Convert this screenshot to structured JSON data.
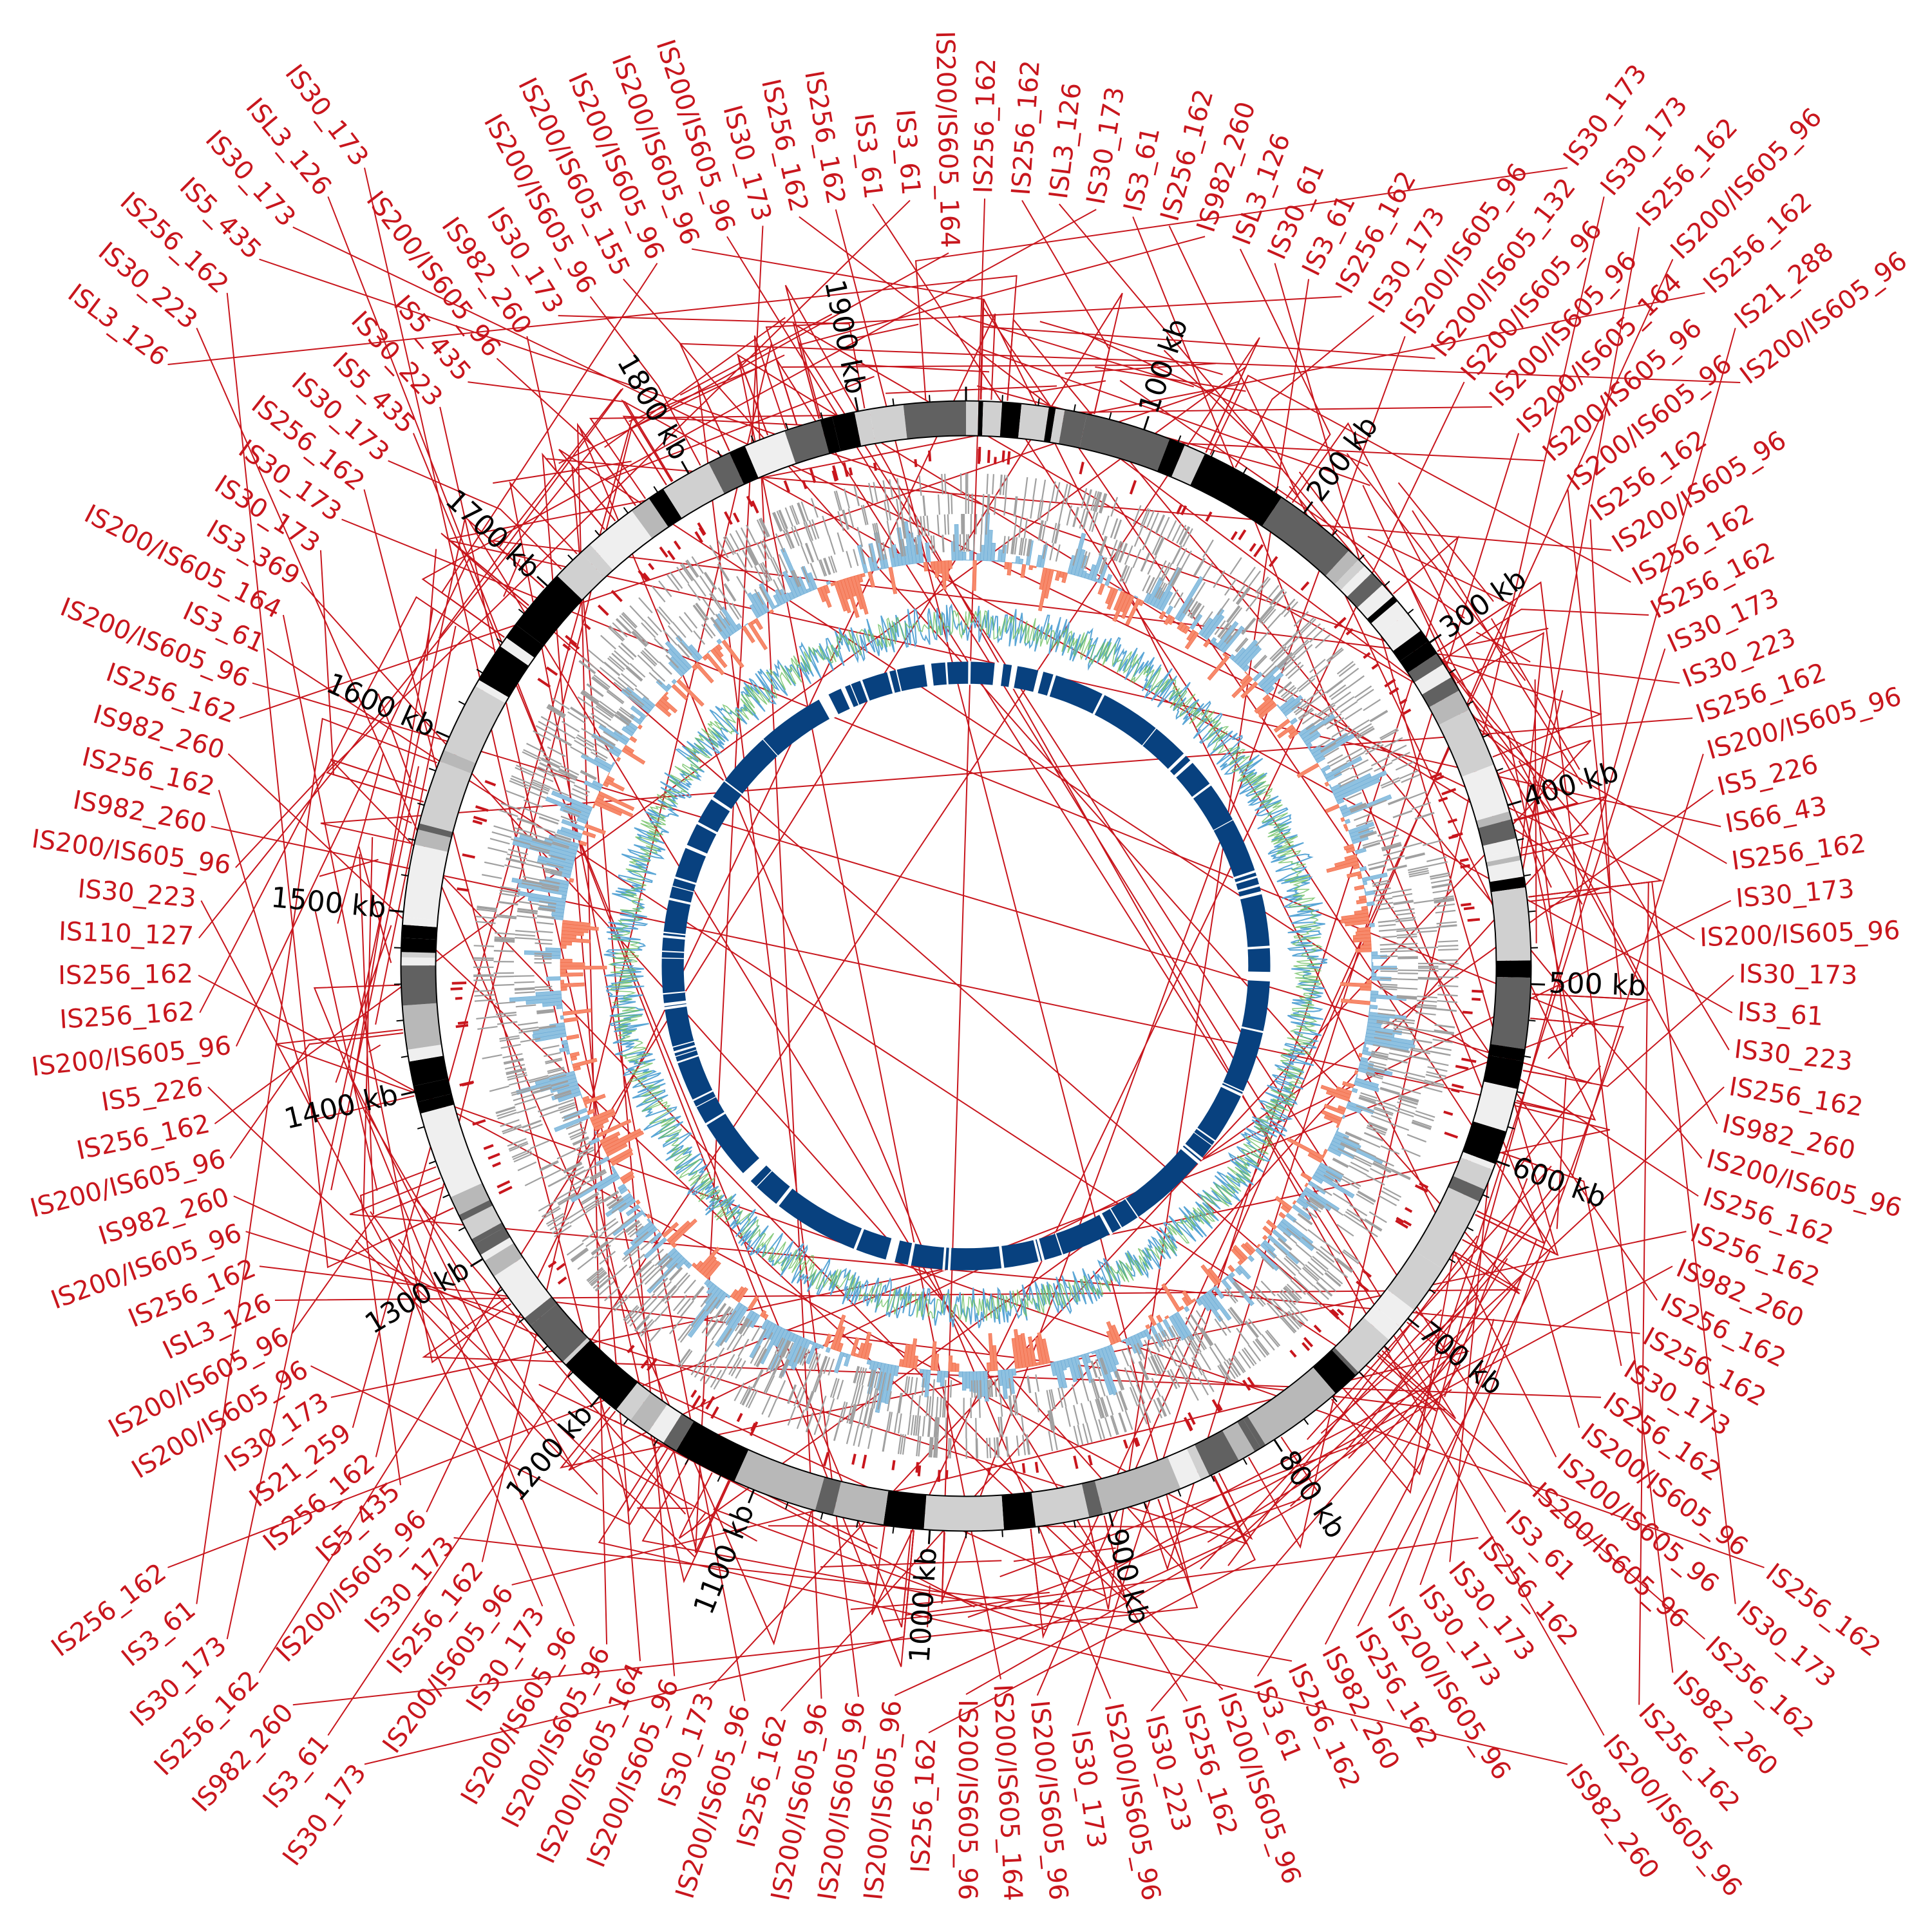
{
  "genome": {
    "total_kb": 1960,
    "tick_labels": [
      "100 kb",
      "200 kb",
      "300 kb",
      "400 kb",
      "500 kb",
      "600 kb",
      "700 kb",
      "800 kb",
      "900 kb",
      "1000 kb",
      "1100 kb",
      "1200 kb",
      "1300 kb",
      "1400 kb",
      "1500 kb",
      "1600 kb",
      "1700 kb",
      "1800 kb",
      "1900 kb"
    ],
    "tick_values_kb": [
      100,
      200,
      300,
      400,
      500,
      600,
      700,
      800,
      900,
      1000,
      1100,
      1200,
      1300,
      1400,
      1500,
      1600,
      1700,
      1800,
      1900
    ]
  },
  "colors": {
    "is_element": "#c8161d",
    "gene": "#a0a0a0",
    "skew_positive": "#8fc1e0",
    "skew_negative": "#f7896b",
    "gc_content_a": "#6bbf5f",
    "gc_content_b": "#5aa6d6",
    "inner_ring": "#08417f",
    "band_palette": [
      "#000000",
      "#616161",
      "#b8b8b8",
      "#efefef",
      "#d0d0d0"
    ]
  },
  "is_labels": [
    "IS256_162",
    "IS256_162",
    "ISL3_126",
    "IS30_173",
    "IS3_61",
    "IS256_162",
    "IS982_260",
    "ISL3_126",
    "IS30_61",
    "IS3_61",
    "IS256_162",
    "IS30_173",
    "IS200/IS605_96",
    "IS200/IS605_132",
    "IS200/IS605_96",
    "IS200/IS605_96",
    "IS200/IS605_164",
    "IS200/IS605_96",
    "IS200/IS605_96",
    "IS256_162",
    "IS200/IS605_96",
    "IS256_162",
    "IS256_162",
    "IS30_173",
    "IS30_223",
    "IS256_162",
    "IS200/IS605_96",
    "IS5_226",
    "IS66_43",
    "IS256_162",
    "IS30_173",
    "IS200/IS605_96",
    "IS30_173",
    "IS3_61",
    "IS30_223",
    "IS256_162",
    "IS982_260",
    "IS200/IS605_96",
    "IS256_162",
    "IS256_162",
    "IS982_260",
    "IS256_162",
    "IS256_162",
    "IS30_173",
    "IS256_162",
    "IS200/IS605_96",
    "IS200/IS605_96",
    "IS200/IS605_96",
    "IS3_61",
    "IS256_162",
    "IS30_173",
    "IS30_173",
    "IS200/IS605_96",
    "IS256_162",
    "IS982_260",
    "IS256_162",
    "IS3_61",
    "IS200/IS605_96",
    "IS256_162",
    "IS30_223",
    "IS200/IS605_96",
    "IS30_173",
    "IS200/IS605_96",
    "IS200/IS605_164",
    "IS200/IS605_96",
    "IS256_162",
    "IS200/IS605_96",
    "IS200/IS605_96",
    "IS200/IS605_96",
    "IS256_162",
    "IS200/IS605_96",
    "IS30_173",
    "IS200/IS605_96",
    "IS200/IS605_164",
    "IS200/IS605_96",
    "IS200/IS605_96",
    "IS30_173",
    "IS200/IS605_96",
    "IS256_162",
    "IS30_173",
    "IS200/IS605_96",
    "IS5_435",
    "IS256_162",
    "IS21_259",
    "IS30_173",
    "IS200/IS605_96",
    "IS200/IS605_96",
    "ISL3_126",
    "IS256_162",
    "IS200/IS605_96",
    "IS982_260",
    "IS200/IS605_96",
    "IS256_162",
    "IS5_226",
    "IS200/IS605_96",
    "IS256_162",
    "IS256_162",
    "IS110_127",
    "IS30_223",
    "IS200/IS605_96",
    "IS982_260",
    "IS256_162",
    "IS982_260",
    "IS256_162",
    "IS200/IS605_96",
    "IS3_61",
    "IS200/IS605_164",
    "IS3_369",
    "IS30_173",
    "IS30_173",
    "IS256_162",
    "IS30_173",
    "IS5_435",
    "IS30_223",
    "IS5_435",
    "IS200/IS605_96",
    "IS982_260",
    "IS30_173",
    "IS200/IS605_96",
    "IS200/IS605_155",
    "IS200/IS605_96",
    "IS200/IS605_96",
    "IS200/IS605_96",
    "IS30_173",
    "IS256_162",
    "IS256_162",
    "IS3_61",
    "IS3_61",
    "IS200/IS605_164"
  ],
  "outer_labels": [
    "IS30_173",
    "IS30_173",
    "IS256_162",
    "IS200/IS605_96",
    "IS256_162",
    "IS21_288",
    "IS200/IS605_96",
    "IS256_162",
    "IS30_173",
    "IS256_162",
    "IS982_260",
    "IS256_162",
    "IS200/IS605_96",
    "IS982_260",
    "IS30_173",
    "IS3_61",
    "IS982_260",
    "IS256_162",
    "IS30_173",
    "IS3_61",
    "IS256_162",
    "ISL3_126",
    "IS30_223",
    "IS256_162",
    "IS5_435",
    "IS30_173",
    "ISL3_126",
    "IS30_173"
  ]
}
